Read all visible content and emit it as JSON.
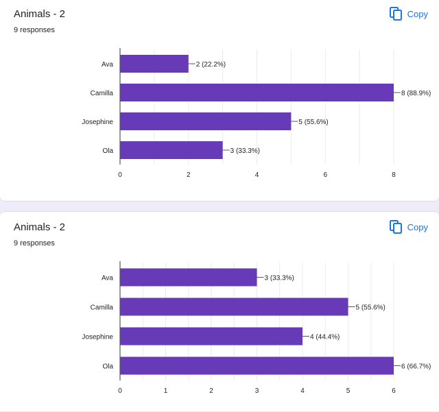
{
  "cards": [
    {
      "title": "Animals - 2",
      "responses": "9 responses",
      "copy_label": "Copy"
    },
    {
      "title": "Animals - 2",
      "responses": "9 responses",
      "copy_label": "Copy"
    }
  ],
  "colors": {
    "bar": "#673ab7",
    "accent": "#1a73e8",
    "page_bg": "#f0ebf8"
  },
  "chart_data": [
    {
      "type": "bar",
      "orientation": "horizontal",
      "title": "Animals - 2",
      "subtitle": "9 responses",
      "categories": [
        "Ava",
        "Camilla",
        "Josephine",
        "Ola"
      ],
      "values": [
        2,
        8,
        5,
        3
      ],
      "value_labels": [
        "2 (22.2%)",
        "8 (88.9%)",
        "5 (55.6%)",
        "3 (33.3%)"
      ],
      "xlim": [
        0,
        8
      ],
      "xticks": [
        0,
        2,
        4,
        6,
        8
      ],
      "grid": true
    },
    {
      "type": "bar",
      "orientation": "horizontal",
      "title": "Animals - 2",
      "subtitle": "9 responses",
      "categories": [
        "Ava",
        "Camilla",
        "Josephine",
        "Ola"
      ],
      "values": [
        3,
        5,
        4,
        6
      ],
      "value_labels": [
        "3 (33.3%)",
        "5 (55.6%)",
        "4 (44.4%)",
        "6 (66.7%)"
      ],
      "xlim": [
        0,
        6
      ],
      "xticks": [
        0,
        1,
        2,
        3,
        4,
        5,
        6
      ],
      "grid": true
    }
  ]
}
